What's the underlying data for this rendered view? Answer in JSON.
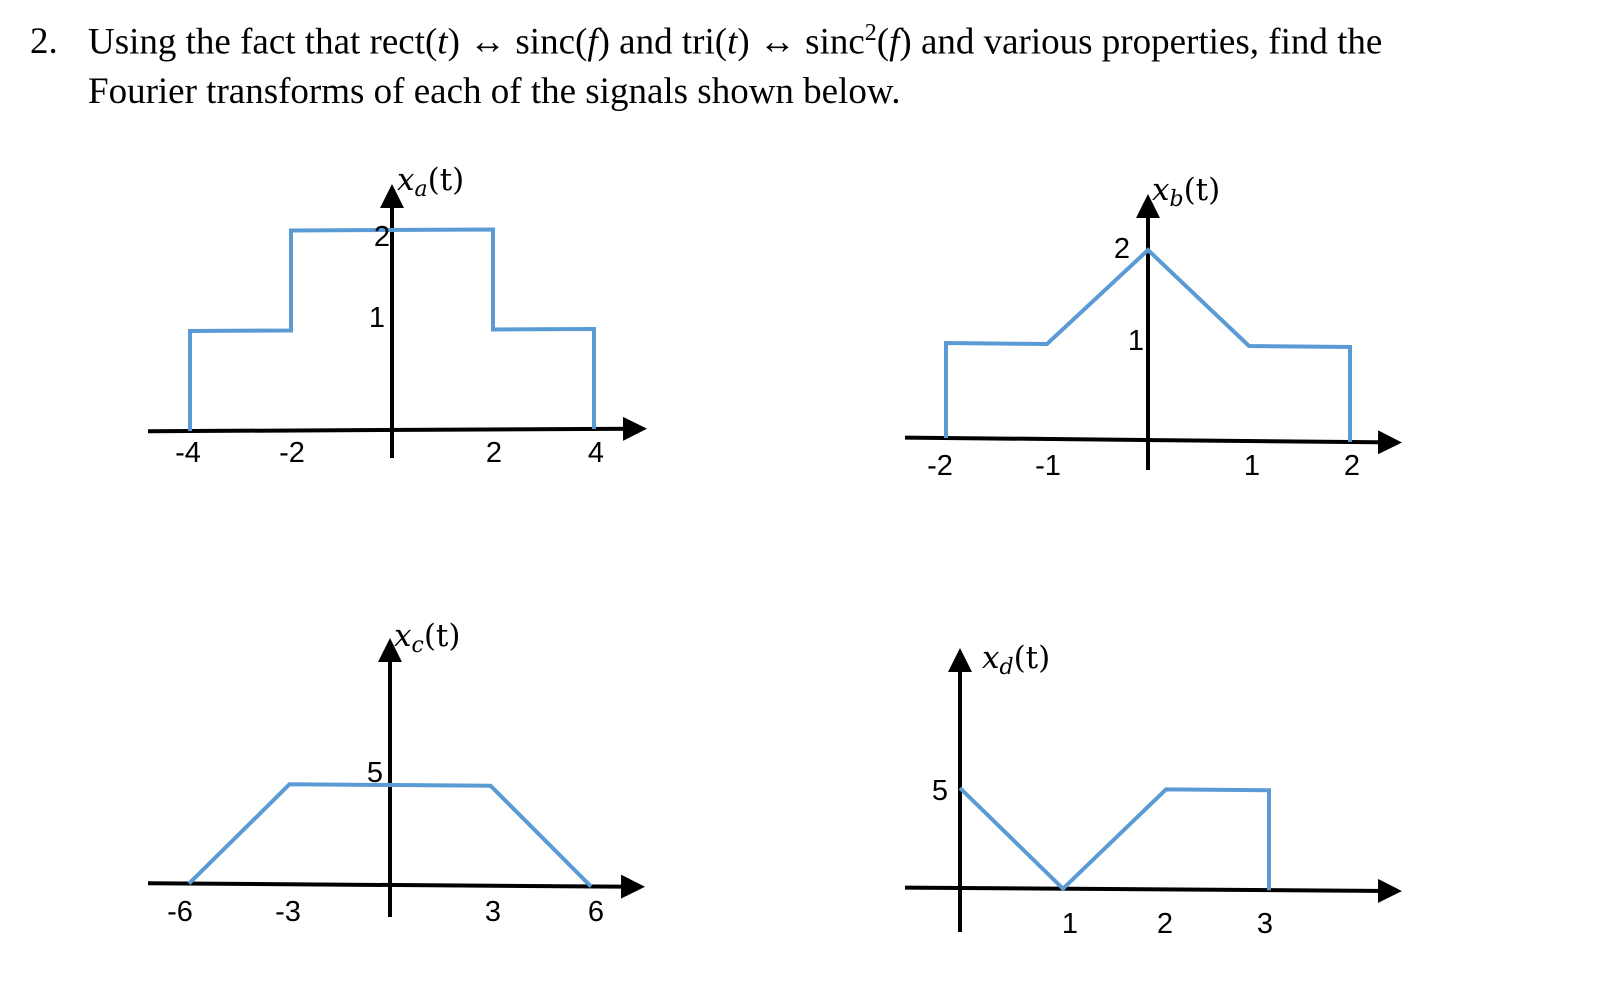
{
  "problem": {
    "number": "2.",
    "line1_parts": [
      "Using the fact that rect(",
      "t",
      ") ↔ sinc(",
      "f",
      ") and tri(",
      "t",
      ") ↔ sinc",
      "2",
      "(",
      "f",
      ") and various properties, find the"
    ],
    "line2": "Fourier transforms of each of the signals shown below."
  },
  "colors": {
    "signal": "#5b9bd5",
    "axis": "#000000"
  },
  "plots": [
    {
      "id": "a",
      "label_var": "x",
      "label_sub": "a",
      "label_arg": "(t)",
      "x_ticks": [
        "-4",
        "-2",
        "2",
        "4"
      ],
      "y_ticks": [
        "2",
        "1"
      ],
      "points": [
        [
          -4,
          0
        ],
        [
          -4,
          1
        ],
        [
          -2,
          1
        ],
        [
          -2,
          2
        ],
        [
          2,
          2
        ],
        [
          2,
          1
        ],
        [
          4,
          1
        ],
        [
          4,
          0
        ]
      ]
    },
    {
      "id": "b",
      "label_var": "x",
      "label_sub": "b",
      "label_arg": "(t)",
      "x_ticks": [
        "-2",
        "-1",
        "1",
        "2"
      ],
      "y_ticks": [
        "2",
        "1"
      ],
      "points": [
        [
          -2,
          0
        ],
        [
          -2,
          1
        ],
        [
          -1,
          1
        ],
        [
          0,
          2
        ],
        [
          1,
          1
        ],
        [
          2,
          1
        ],
        [
          2,
          0
        ]
      ]
    },
    {
      "id": "c",
      "label_var": "x",
      "label_sub": "c",
      "label_arg": "(t)",
      "x_ticks": [
        "-6",
        "-3",
        "3",
        "6"
      ],
      "y_ticks": [
        "5"
      ],
      "points": [
        [
          -6,
          0
        ],
        [
          -3,
          5
        ],
        [
          3,
          5
        ],
        [
          6,
          0
        ]
      ]
    },
    {
      "id": "d",
      "label_var": "x",
      "label_sub": "d",
      "label_arg": "(t)",
      "x_ticks": [
        "1",
        "2",
        "3"
      ],
      "y_ticks": [
        "5"
      ],
      "points": [
        [
          0,
          5
        ],
        [
          1,
          0
        ],
        [
          2,
          5
        ],
        [
          3,
          5
        ],
        [
          3,
          0
        ]
      ]
    }
  ]
}
